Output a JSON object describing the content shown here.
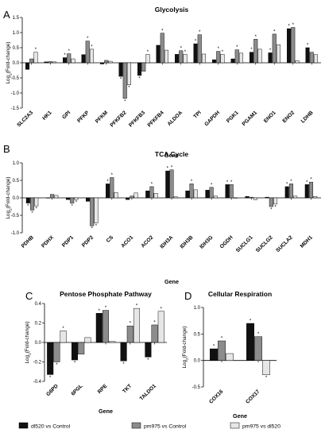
{
  "legend": {
    "entries": [
      {
        "label": "dl520 vs Control",
        "color": "#111111"
      },
      {
        "label": "pm975 vs Control",
        "color": "#8c8c8c"
      },
      {
        "label": "pm975 vs dl520",
        "color": "#e6e6e6"
      }
    ]
  },
  "chart_data": [
    {
      "panel": "A",
      "type": "bar",
      "title": "Glycolysis",
      "xlabel": "Gene",
      "ylabel": "Log2(Fold-change)",
      "ylim": [
        -1.5,
        1.5
      ],
      "yticks": [
        -1.5,
        -1.0,
        -0.5,
        0.0,
        0.5,
        1.0,
        1.5
      ],
      "grid": false,
      "categories": [
        "SLC2A3",
        "HK1",
        "GPI",
        "PFKP",
        "PFKM",
        "PFKFB2",
        "PFKFB3",
        "PFKFB4",
        "ALDOA",
        "TPI",
        "GAPDH",
        "PGK1",
        "PGAM1",
        "ENO1",
        "ENO2",
        "LDHB"
      ],
      "series": [
        {
          "name": "dl520 vs Control",
          "values": [
            -0.22,
            0.03,
            0.17,
            0.27,
            -0.04,
            -0.45,
            -0.42,
            0.58,
            0.28,
            0.63,
            0.1,
            0.13,
            0.35,
            0.33,
            1.13,
            0.5
          ]
        },
        {
          "name": "pm975 vs Control",
          "values": [
            0.13,
            0.04,
            0.3,
            0.72,
            0.08,
            -1.18,
            -0.28,
            0.98,
            0.4,
            0.93,
            0.38,
            0.43,
            0.78,
            0.95,
            1.17,
            0.35
          ]
        },
        {
          "name": "pm975 vs dl520",
          "values": [
            0.35,
            0.03,
            0.13,
            0.45,
            0.05,
            -0.73,
            0.28,
            0.42,
            0.28,
            0.29,
            0.28,
            0.32,
            0.45,
            0.6,
            0.07,
            0.27
          ]
        }
      ],
      "significant": [
        [
          0,
          2
        ],
        [
          2,
          0
        ],
        [
          2,
          1
        ],
        [
          3,
          1
        ],
        [
          3,
          2
        ],
        [
          5,
          0
        ],
        [
          5,
          1
        ],
        [
          5,
          2
        ],
        [
          6,
          0
        ],
        [
          6,
          2
        ],
        [
          7,
          1
        ],
        [
          8,
          1
        ],
        [
          8,
          2
        ],
        [
          9,
          0
        ],
        [
          9,
          1
        ],
        [
          10,
          1
        ],
        [
          10,
          2
        ],
        [
          11,
          1
        ],
        [
          12,
          0
        ],
        [
          12,
          1
        ],
        [
          13,
          0
        ],
        [
          13,
          1
        ],
        [
          14,
          0
        ],
        [
          14,
          1
        ],
        [
          15,
          0
        ]
      ]
    },
    {
      "panel": "B",
      "type": "bar",
      "title": "TCA Cycle",
      "xlabel": "Gene",
      "ylabel": "Log2(Fold-change)",
      "ylim": [
        -1.0,
        1.0
      ],
      "yticks": [
        -1.0,
        -0.5,
        0.0,
        0.5,
        1.0
      ],
      "grid": false,
      "categories": [
        "PDHB",
        "PDHX",
        "PDP1",
        "PDP2",
        "CS",
        "ACO1",
        "ACO2",
        "IDH3A",
        "IDH3B",
        "IDH3G",
        "OGDH",
        "SUCLG1",
        "SUCLG2",
        "SUCLA2",
        "MDH1"
      ],
      "series": [
        {
          "name": "dl520 vs Control",
          "values": [
            -0.15,
            0.0,
            -0.05,
            -0.1,
            0.4,
            -0.05,
            0.2,
            0.77,
            0.2,
            0.22,
            0.38,
            0.04,
            0.02,
            0.32,
            0.38
          ]
        },
        {
          "name": "pm975 vs Control",
          "values": [
            -0.35,
            0.1,
            -0.15,
            -0.8,
            0.58,
            0.05,
            0.32,
            0.8,
            0.4,
            0.3,
            0.38,
            0.02,
            -0.25,
            0.4,
            0.45
          ]
        },
        {
          "name": "pm975 vs dl520",
          "values": [
            -0.23,
            0.07,
            -0.05,
            -0.72,
            0.15,
            0.14,
            0.13,
            0.03,
            0.23,
            0.05,
            0.0,
            -0.05,
            -0.18,
            0.05,
            0.04
          ]
        }
      ],
      "significant": [
        [
          0,
          0
        ],
        [
          0,
          1
        ],
        [
          0,
          2
        ],
        [
          2,
          1
        ],
        [
          2,
          2
        ],
        [
          3,
          1
        ],
        [
          3,
          2
        ],
        [
          4,
          0
        ],
        [
          4,
          1
        ],
        [
          6,
          1
        ],
        [
          7,
          0
        ],
        [
          7,
          1
        ],
        [
          8,
          1
        ],
        [
          9,
          1
        ],
        [
          10,
          0
        ],
        [
          10,
          1
        ],
        [
          12,
          1
        ],
        [
          12,
          2
        ],
        [
          13,
          0
        ],
        [
          13,
          1
        ],
        [
          14,
          0
        ],
        [
          14,
          1
        ]
      ]
    },
    {
      "panel": "C",
      "type": "bar",
      "title": "Pentose Phosphate Pathway",
      "xlabel": "Gene",
      "ylabel": "Log2(Fold-change)",
      "ylim": [
        -0.4,
        0.4
      ],
      "yticks": [
        -0.4,
        -0.2,
        0.0,
        0.2,
        0.4
      ],
      "grid": false,
      "categories": [
        "G6PD",
        "6PGL",
        "RPE",
        "TKT",
        "TALDO1"
      ],
      "series": [
        {
          "name": "dl520 vs Control",
          "values": [
            -0.33,
            -0.18,
            0.3,
            -0.19,
            -0.15
          ]
        },
        {
          "name": "pm975 vs Control",
          "values": [
            -0.2,
            -0.12,
            0.33,
            0.17,
            0.18
          ]
        },
        {
          "name": "pm975 vs dl520",
          "values": [
            0.12,
            0.05,
            0.01,
            0.35,
            0.32
          ]
        }
      ],
      "significant": [
        [
          0,
          0
        ],
        [
          0,
          1
        ],
        [
          0,
          2
        ],
        [
          1,
          0
        ],
        [
          2,
          0
        ],
        [
          2,
          1
        ],
        [
          3,
          0
        ],
        [
          3,
          1
        ],
        [
          3,
          2
        ],
        [
          4,
          0
        ],
        [
          4,
          1
        ],
        [
          4,
          2
        ]
      ]
    },
    {
      "panel": "D",
      "type": "bar",
      "title": "Cellular Respiration",
      "xlabel": "Gene",
      "ylabel": "Log2(Fold-change)",
      "ylim": [
        -0.5,
        1.0
      ],
      "yticks": [
        -0.5,
        0.0,
        0.5,
        1.0
      ],
      "grid": false,
      "categories": [
        "COX16",
        "COX17"
      ],
      "series": [
        {
          "name": "dl520 vs Control",
          "values": [
            0.22,
            0.7
          ]
        },
        {
          "name": "pm975 vs Control",
          "values": [
            0.37,
            0.45
          ]
        },
        {
          "name": "pm975 vs dl520",
          "values": [
            0.13,
            -0.27
          ]
        }
      ],
      "significant": [
        [
          0,
          0
        ],
        [
          0,
          1
        ],
        [
          1,
          0
        ],
        [
          1,
          1
        ],
        [
          1,
          2
        ]
      ]
    }
  ]
}
